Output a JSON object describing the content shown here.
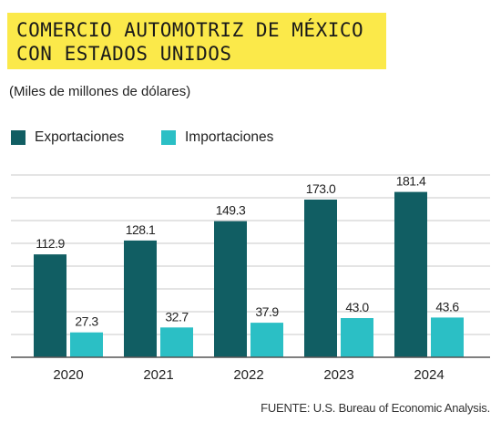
{
  "title_lines": [
    "COMERCIO AUTOMOTRIZ DE MÉXICO",
    "CON ESTADOS UNIDOS"
  ],
  "subtitle": "(Miles de millones de dólares)",
  "source": "FUENTE: U.S. Bureau of Economic Analysis.",
  "colors": {
    "exportaciones": "#115e63",
    "importaciones": "#2bbfc5",
    "title_bg": "#fbe94a",
    "grid": "#c8c8c8"
  },
  "chart_data": {
    "type": "bar",
    "categories": [
      "2020",
      "2021",
      "2022",
      "2023",
      "2024"
    ],
    "series": [
      {
        "name": "Exportaciones",
        "values": [
          112.9,
          128.1,
          149.3,
          173.0,
          181.4
        ]
      },
      {
        "name": "Importaciones",
        "values": [
          27.3,
          32.7,
          37.9,
          43.0,
          43.6
        ]
      }
    ],
    "data_labels": [
      [
        "112.9",
        "128.1",
        "149.3",
        "173.0",
        "181.4"
      ],
      [
        "27.3",
        "32.7",
        "37.9",
        "43.0",
        "43.6"
      ]
    ],
    "ylim": [
      0,
      200
    ],
    "grid": true,
    "legend": "top-left"
  }
}
